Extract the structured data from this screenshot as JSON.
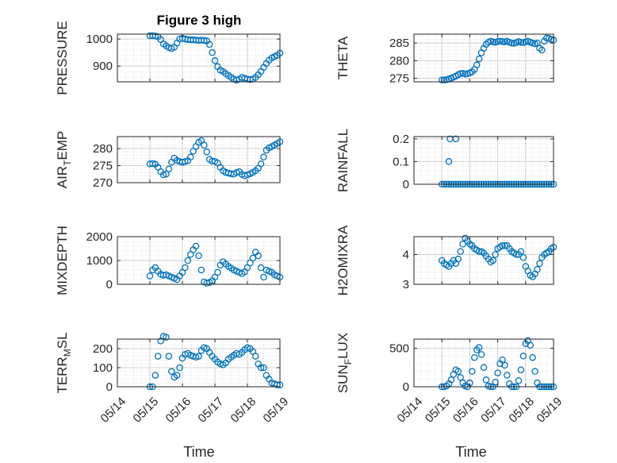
{
  "figure_title": "Figure 3 high",
  "colors": {
    "marker": "#0072BD",
    "axis": "#262626",
    "grid": "#dcdcdc"
  },
  "chart_data": [
    {
      "type": "scatter",
      "ylabel": "PRESSURE",
      "ylabel_sub": "",
      "ylabel_tail": "",
      "ylim": [
        842,
        1018
      ],
      "yticks": [
        900,
        1000
      ],
      "yticklabels": [
        "900",
        "1000"
      ],
      "x": [
        "05/15 00:00",
        "05/15 02:00",
        "05/15 04:00",
        "05/15 06:00",
        "05/15 08:00",
        "05/15 10:00",
        "05/15 12:00",
        "05/15 14:00",
        "05/15 16:00",
        "05/15 18:00",
        "05/15 20:00",
        "05/15 22:00",
        "05/16 00:00",
        "05/16 02:00",
        "05/16 04:00",
        "05/16 06:00",
        "05/16 08:00",
        "05/16 10:00",
        "05/16 12:00",
        "05/16 14:00",
        "05/16 16:00",
        "05/16 18:00",
        "05/16 20:00",
        "05/16 22:00",
        "05/17 00:00",
        "05/17 02:00",
        "05/17 04:00",
        "05/17 06:00",
        "05/17 08:00",
        "05/17 10:00",
        "05/17 12:00",
        "05/17 14:00",
        "05/17 16:00",
        "05/17 18:00",
        "05/17 20:00",
        "05/17 22:00",
        "05/18 00:00",
        "05/18 02:00",
        "05/18 04:00",
        "05/18 06:00",
        "05/18 08:00",
        "05/18 10:00",
        "05/18 12:00",
        "05/18 14:00",
        "05/18 16:00",
        "05/18 18:00",
        "05/18 20:00",
        "05/18 22:00",
        "05/19 00:00"
      ],
      "y": [
        1012,
        1012,
        1011,
        1008,
        998,
        982,
        975,
        968,
        965,
        970,
        985,
        1000,
        1003,
        1000,
        998,
        997,
        997,
        996,
        995,
        996,
        995,
        993,
        980,
        950,
        920,
        898,
        885,
        880,
        872,
        865,
        858,
        852,
        848,
        852,
        858,
        855,
        852,
        850,
        852,
        858,
        868,
        880,
        895,
        910,
        922,
        930,
        935,
        940,
        948
      ]
    },
    {
      "type": "scatter",
      "ylabel": "THETA",
      "ylabel_sub": "",
      "ylabel_tail": "",
      "ylim": [
        274,
        287.5
      ],
      "yticks": [
        275,
        280,
        285
      ],
      "yticklabels": [
        "275",
        "280",
        "285"
      ],
      "x": [
        "05/15 00:00",
        "05/15 02:00",
        "05/15 04:00",
        "05/15 06:00",
        "05/15 08:00",
        "05/15 10:00",
        "05/15 12:00",
        "05/15 14:00",
        "05/15 16:00",
        "05/15 18:00",
        "05/15 20:00",
        "05/15 22:00",
        "05/16 00:00",
        "05/16 02:00",
        "05/16 04:00",
        "05/16 06:00",
        "05/16 08:00",
        "05/16 10:00",
        "05/16 12:00",
        "05/16 14:00",
        "05/16 16:00",
        "05/16 18:00",
        "05/16 20:00",
        "05/16 22:00",
        "05/17 00:00",
        "05/17 02:00",
        "05/17 04:00",
        "05/17 06:00",
        "05/17 08:00",
        "05/17 10:00",
        "05/17 12:00",
        "05/17 14:00",
        "05/17 16:00",
        "05/17 18:00",
        "05/17 20:00",
        "05/17 22:00",
        "05/18 00:00",
        "05/18 02:00",
        "05/18 04:00",
        "05/18 06:00",
        "05/18 08:00",
        "05/18 10:00",
        "05/18 12:00",
        "05/18 14:00",
        "05/18 16:00",
        "05/18 18:00",
        "05/18 20:00",
        "05/18 22:00",
        "05/19 00:00"
      ],
      "y": [
        274.5,
        274.5,
        274.6,
        274.8,
        275.0,
        275.3,
        275.6,
        276.0,
        276.3,
        276.4,
        276.2,
        276.3,
        276.5,
        276.8,
        277.5,
        278.8,
        280.5,
        282.2,
        283.5,
        284.6,
        285.2,
        285.5,
        285.3,
        285.2,
        285.4,
        285.5,
        285.4,
        285.3,
        285.5,
        285.2,
        285.0,
        284.9,
        285.1,
        285.4,
        285.2,
        285.1,
        285.3,
        285.5,
        285.2,
        285.0,
        284.8,
        285.0,
        283.5,
        283.0,
        285.5,
        286.4,
        286.3,
        286.0,
        285.8
      ]
    },
    {
      "type": "scatter",
      "ylabel": "AIR",
      "ylabel_sub": "T",
      "ylabel_tail": "EMP",
      "ylim": [
        270,
        283.5
      ],
      "yticks": [
        270,
        275,
        280
      ],
      "yticklabels": [
        "270",
        "275",
        "280"
      ],
      "x": [
        "05/15 00:00",
        "05/15 02:00",
        "05/15 04:00",
        "05/15 06:00",
        "05/15 08:00",
        "05/15 10:00",
        "05/15 12:00",
        "05/15 14:00",
        "05/15 16:00",
        "05/15 18:00",
        "05/15 20:00",
        "05/15 22:00",
        "05/16 00:00",
        "05/16 02:00",
        "05/16 04:00",
        "05/16 06:00",
        "05/16 08:00",
        "05/16 10:00",
        "05/16 12:00",
        "05/16 14:00",
        "05/16 16:00",
        "05/16 18:00",
        "05/16 20:00",
        "05/16 22:00",
        "05/17 00:00",
        "05/17 02:00",
        "05/17 04:00",
        "05/17 06:00",
        "05/17 08:00",
        "05/17 10:00",
        "05/17 12:00",
        "05/17 14:00",
        "05/17 16:00",
        "05/17 18:00",
        "05/17 20:00",
        "05/17 22:00",
        "05/18 00:00",
        "05/18 02:00",
        "05/18 04:00",
        "05/18 06:00",
        "05/18 08:00",
        "05/18 10:00",
        "05/18 12:00",
        "05/18 14:00",
        "05/18 16:00",
        "05/18 18:00",
        "05/18 20:00",
        "05/18 22:00",
        "05/19 00:00"
      ],
      "y": [
        275.5,
        275.6,
        275.4,
        274.5,
        273.2,
        272.3,
        272.5,
        274.0,
        276.0,
        277.2,
        276.5,
        276.2,
        276.0,
        276.2,
        276.4,
        277.5,
        279.2,
        280.6,
        281.8,
        282.3,
        281.0,
        279.0,
        276.8,
        276.3,
        276.2,
        275.8,
        274.5,
        273.5,
        273.0,
        272.8,
        272.6,
        272.5,
        273.0,
        273.2,
        272.4,
        272.0,
        272.3,
        272.6,
        273.0,
        273.5,
        274.2,
        275.5,
        277.5,
        279.5,
        280.2,
        280.6,
        281.0,
        281.5,
        282.0
      ]
    },
    {
      "type": "scatter",
      "ylabel": "RAINFALL",
      "ylabel_sub": "",
      "ylabel_tail": "",
      "ylim": [
        0,
        0.21
      ],
      "yticks": [
        0,
        0.1,
        0.2
      ],
      "yticklabels": [
        "0",
        "0.1",
        "0.2"
      ],
      "x": [
        "05/15 00:00",
        "05/15 02:00",
        "05/15 04:00",
        "05/15 06:00",
        "05/15 08:00",
        "05/15 10:00",
        "05/15 12:00",
        "05/15 14:00",
        "05/15 16:00",
        "05/15 18:00",
        "05/15 20:00",
        "05/15 22:00",
        "05/16 00:00",
        "05/16 02:00",
        "05/16 04:00",
        "05/16 06:00",
        "05/16 08:00",
        "05/16 10:00",
        "05/16 12:00",
        "05/16 14:00",
        "05/16 16:00",
        "05/16 18:00",
        "05/16 20:00",
        "05/16 22:00",
        "05/17 00:00",
        "05/17 02:00",
        "05/17 04:00",
        "05/17 06:00",
        "05/17 08:00",
        "05/17 10:00",
        "05/17 12:00",
        "05/17 14:00",
        "05/17 16:00",
        "05/17 18:00",
        "05/17 20:00",
        "05/17 22:00",
        "05/18 00:00",
        "05/18 02:00",
        "05/18 04:00",
        "05/18 06:00",
        "05/18 08:00",
        "05/18 10:00",
        "05/18 12:00",
        "05/18 14:00",
        "05/18 16:00",
        "05/18 18:00",
        "05/18 20:00",
        "05/18 22:00",
        "05/19 00:00",
        "05/15 06:00",
        "05/15 07:00",
        "05/15 12:00"
      ],
      "y": [
        0,
        0,
        0,
        0,
        0,
        0,
        0,
        0,
        0,
        0,
        0,
        0,
        0,
        0,
        0,
        0,
        0,
        0,
        0,
        0,
        0,
        0,
        0,
        0,
        0,
        0,
        0,
        0,
        0,
        0,
        0,
        0,
        0,
        0,
        0,
        0,
        0,
        0,
        0,
        0,
        0,
        0,
        0,
        0,
        0,
        0,
        0,
        0,
        0,
        0.1,
        0.2,
        0.2
      ]
    },
    {
      "type": "scatter",
      "ylabel": "MIXDEPTH",
      "ylabel_sub": "",
      "ylabel_tail": "",
      "ylim": [
        0,
        2000
      ],
      "yticks": [
        0,
        1000,
        2000
      ],
      "yticklabels": [
        "0",
        "1000",
        "2000"
      ],
      "x": [
        "05/15 00:00",
        "05/15 02:00",
        "05/15 04:00",
        "05/15 06:00",
        "05/15 08:00",
        "05/15 10:00",
        "05/15 12:00",
        "05/15 14:00",
        "05/15 16:00",
        "05/15 18:00",
        "05/15 20:00",
        "05/15 22:00",
        "05/16 00:00",
        "05/16 02:00",
        "05/16 04:00",
        "05/16 06:00",
        "05/16 08:00",
        "05/16 10:00",
        "05/16 12:00",
        "05/16 14:00",
        "05/16 16:00",
        "05/16 18:00",
        "05/16 20:00",
        "05/16 22:00",
        "05/17 00:00",
        "05/17 02:00",
        "05/17 04:00",
        "05/17 06:00",
        "05/17 08:00",
        "05/17 10:00",
        "05/17 12:00",
        "05/17 14:00",
        "05/17 16:00",
        "05/17 18:00",
        "05/17 20:00",
        "05/17 22:00",
        "05/18 00:00",
        "05/18 02:00",
        "05/18 04:00",
        "05/18 06:00",
        "05/18 08:00",
        "05/18 10:00",
        "05/18 12:00",
        "05/18 14:00",
        "05/18 16:00",
        "05/18 18:00",
        "05/18 20:00",
        "05/18 22:00",
        "05/19 00:00"
      ],
      "y": [
        350,
        600,
        700,
        550,
        420,
        380,
        400,
        350,
        300,
        250,
        200,
        350,
        500,
        700,
        1000,
        1250,
        1450,
        1600,
        1200,
        600,
        100,
        50,
        80,
        150,
        300,
        500,
        800,
        950,
        850,
        750,
        680,
        600,
        550,
        500,
        450,
        520,
        700,
        900,
        1100,
        1350,
        1200,
        700,
        300,
        600,
        550,
        500,
        400,
        350,
        300
      ]
    },
    {
      "type": "scatter",
      "ylabel": "H2OMIXRA",
      "ylabel_sub": "",
      "ylabel_tail": "",
      "ylim": [
        3,
        4.6
      ],
      "yticks": [
        3,
        4
      ],
      "yticklabels": [
        "3",
        "4"
      ],
      "x": [
        "05/15 00:00",
        "05/15 02:00",
        "05/15 04:00",
        "05/15 06:00",
        "05/15 08:00",
        "05/15 10:00",
        "05/15 12:00",
        "05/15 14:00",
        "05/15 16:00",
        "05/15 18:00",
        "05/15 20:00",
        "05/15 22:00",
        "05/16 00:00",
        "05/16 02:00",
        "05/16 04:00",
        "05/16 06:00",
        "05/16 08:00",
        "05/16 10:00",
        "05/16 12:00",
        "05/16 14:00",
        "05/16 16:00",
        "05/16 18:00",
        "05/16 20:00",
        "05/16 22:00",
        "05/17 00:00",
        "05/17 02:00",
        "05/17 04:00",
        "05/17 06:00",
        "05/17 08:00",
        "05/17 10:00",
        "05/17 12:00",
        "05/17 14:00",
        "05/17 16:00",
        "05/17 18:00",
        "05/17 20:00",
        "05/17 22:00",
        "05/18 00:00",
        "05/18 02:00",
        "05/18 04:00",
        "05/18 06:00",
        "05/18 08:00",
        "05/18 10:00",
        "05/18 12:00",
        "05/18 14:00",
        "05/18 16:00",
        "05/18 18:00",
        "05/18 20:00",
        "05/18 22:00",
        "05/19 00:00"
      ],
      "y": [
        3.8,
        3.7,
        3.65,
        3.6,
        3.7,
        3.8,
        3.7,
        3.85,
        4.1,
        4.35,
        4.55,
        4.45,
        4.35,
        4.3,
        4.2,
        4.15,
        4.1,
        4.1,
        4.05,
        3.95,
        3.85,
        3.75,
        3.8,
        4.0,
        4.2,
        4.25,
        4.3,
        4.3,
        4.3,
        4.2,
        4.1,
        4.05,
        4.0,
        4.0,
        4.1,
        3.9,
        3.6,
        3.45,
        3.3,
        3.25,
        3.35,
        3.5,
        3.7,
        3.9,
        4.0,
        4.05,
        4.1,
        4.2,
        4.25
      ]
    },
    {
      "type": "scatter",
      "ylabel": "TERR",
      "ylabel_sub": "M",
      "ylabel_tail": "SL",
      "ylim": [
        0,
        250
      ],
      "yticks": [
        0,
        100,
        200
      ],
      "yticklabels": [
        "0",
        "100",
        "200"
      ],
      "x": [
        "05/15 00:00",
        "05/15 02:00",
        "05/15 04:00",
        "05/15 06:00",
        "05/15 08:00",
        "05/15 10:00",
        "05/15 12:00",
        "05/15 14:00",
        "05/15 16:00",
        "05/15 18:00",
        "05/15 20:00",
        "05/15 22:00",
        "05/16 00:00",
        "05/16 02:00",
        "05/16 04:00",
        "05/16 06:00",
        "05/16 08:00",
        "05/16 10:00",
        "05/16 12:00",
        "05/16 14:00",
        "05/16 16:00",
        "05/16 18:00",
        "05/16 20:00",
        "05/16 22:00",
        "05/17 00:00",
        "05/17 02:00",
        "05/17 04:00",
        "05/17 06:00",
        "05/17 08:00",
        "05/17 10:00",
        "05/17 12:00",
        "05/17 14:00",
        "05/17 16:00",
        "05/17 18:00",
        "05/17 20:00",
        "05/17 22:00",
        "05/18 00:00",
        "05/18 02:00",
        "05/18 04:00",
        "05/18 06:00",
        "05/18 08:00",
        "05/18 10:00",
        "05/18 12:00",
        "05/18 14:00",
        "05/18 16:00",
        "05/18 18:00",
        "05/18 20:00",
        "05/18 22:00",
        "05/19 00:00"
      ],
      "y": [
        0,
        0,
        60,
        160,
        240,
        265,
        260,
        160,
        80,
        50,
        60,
        100,
        150,
        170,
        175,
        165,
        160,
        155,
        160,
        190,
        205,
        200,
        180,
        160,
        145,
        130,
        120,
        115,
        125,
        145,
        155,
        165,
        175,
        170,
        180,
        195,
        205,
        200,
        185,
        160,
        120,
        100,
        100,
        60,
        40,
        20,
        15,
        10,
        10
      ]
    },
    {
      "type": "scatter",
      "ylabel": "SUN",
      "ylabel_sub": "F",
      "ylabel_tail": "LUX",
      "ylim": [
        0,
        620
      ],
      "yticks": [
        0,
        500
      ],
      "yticklabels": [
        "0",
        "500"
      ],
      "x": [
        "05/15 00:00",
        "05/15 02:00",
        "05/15 04:00",
        "05/15 06:00",
        "05/15 08:00",
        "05/15 10:00",
        "05/15 12:00",
        "05/15 14:00",
        "05/15 16:00",
        "05/15 18:00",
        "05/15 20:00",
        "05/15 22:00",
        "05/16 00:00",
        "05/16 02:00",
        "05/16 04:00",
        "05/16 06:00",
        "05/16 08:00",
        "05/16 10:00",
        "05/16 12:00",
        "05/16 14:00",
        "05/16 16:00",
        "05/16 18:00",
        "05/16 20:00",
        "05/16 22:00",
        "05/17 00:00",
        "05/17 02:00",
        "05/17 04:00",
        "05/17 06:00",
        "05/17 08:00",
        "05/17 10:00",
        "05/17 12:00",
        "05/17 14:00",
        "05/17 16:00",
        "05/17 18:00",
        "05/17 20:00",
        "05/17 22:00",
        "05/18 00:00",
        "05/18 02:00",
        "05/18 04:00",
        "05/18 06:00",
        "05/18 08:00",
        "05/18 10:00",
        "05/18 12:00",
        "05/18 14:00",
        "05/18 16:00",
        "05/18 18:00",
        "05/18 20:00",
        "05/18 22:00",
        "05/19 00:00"
      ],
      "y": [
        0,
        0,
        10,
        40,
        90,
        160,
        220,
        200,
        120,
        50,
        10,
        0,
        50,
        200,
        380,
        480,
        510,
        420,
        250,
        90,
        10,
        0,
        0,
        60,
        180,
        300,
        350,
        280,
        150,
        40,
        0,
        0,
        0,
        80,
        220,
        400,
        560,
        600,
        540,
        380,
        200,
        50,
        0,
        0,
        0,
        0,
        0,
        0,
        0
      ]
    }
  ],
  "xaxis": {
    "label": "Time",
    "ticklabels": [
      "05/14",
      "05/15",
      "05/16",
      "05/17",
      "05/18",
      "05/19"
    ]
  }
}
